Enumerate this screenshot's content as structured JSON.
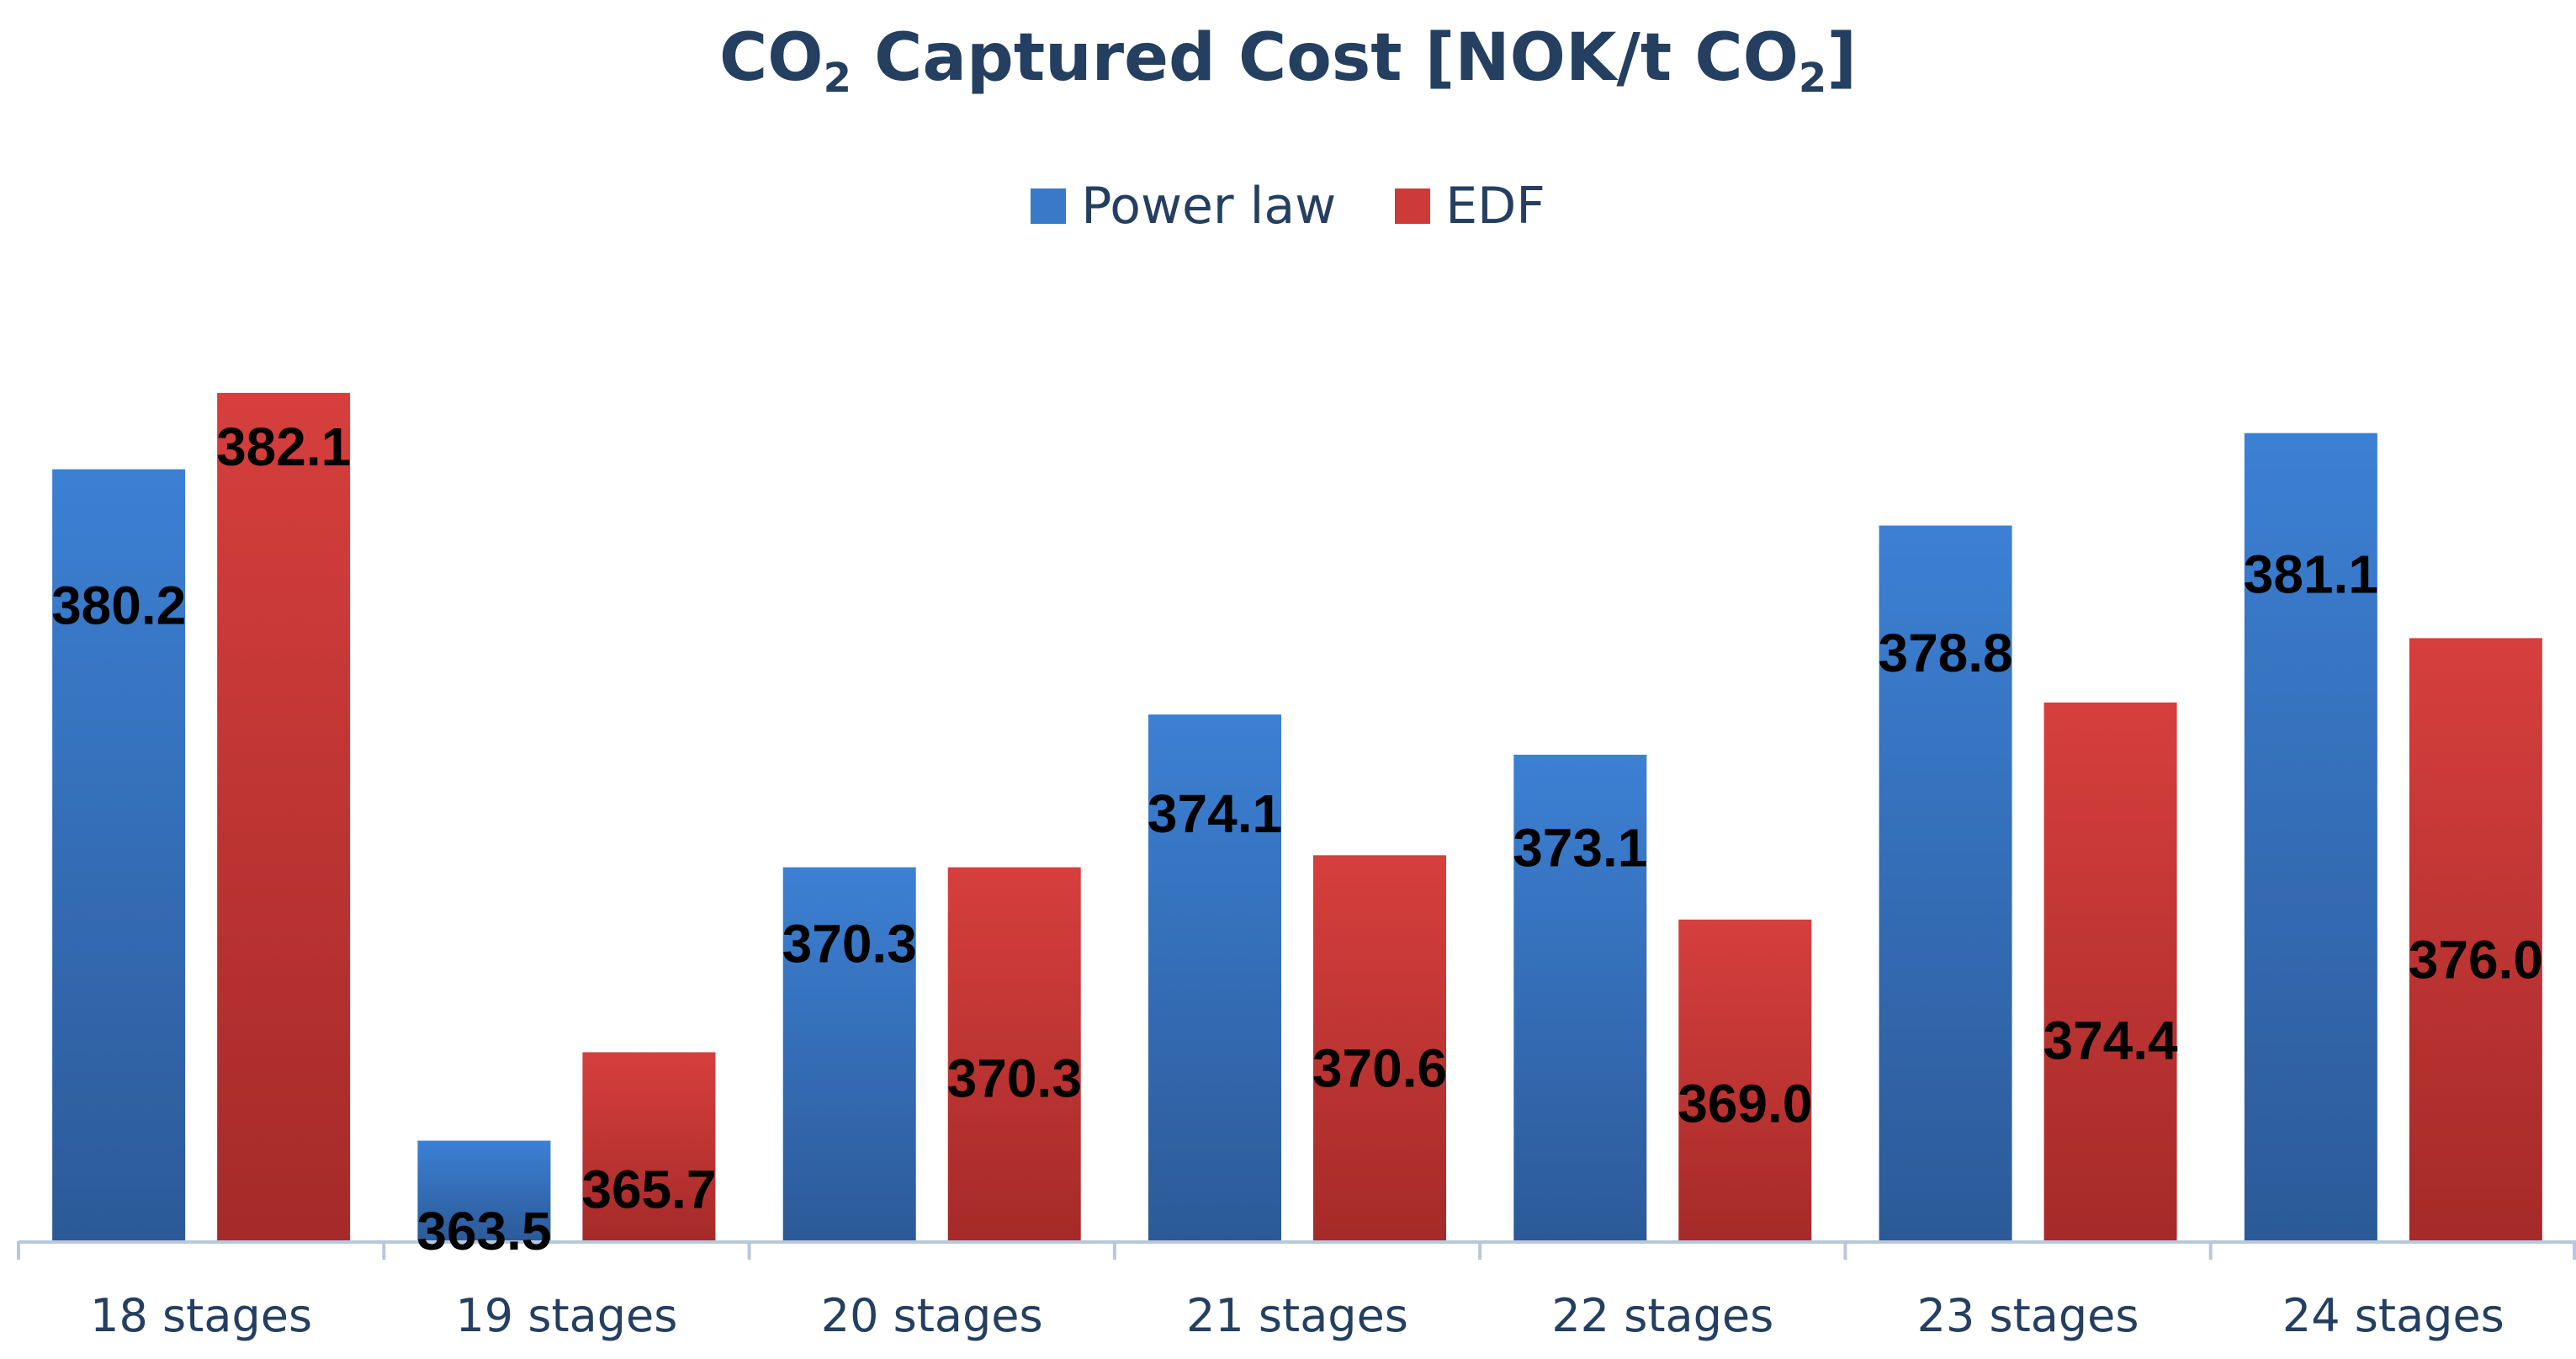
{
  "chart_data": {
    "type": "bar",
    "title_parts": {
      "a": "CO",
      "a_sub": "2",
      "b": " Captured Cost [NOK/t CO",
      "b_sub": "2",
      "c": "]"
    },
    "categories": [
      "18 stages",
      "19 stages",
      "20 stages",
      "21 stages",
      "22 stages",
      "23 stages",
      "24 stages"
    ],
    "series": [
      {
        "name": "Power law",
        "values": [
          380.2,
          363.5,
          370.3,
          374.1,
          373.1,
          378.8,
          381.1
        ],
        "labels": [
          "380.2",
          "363.5",
          "370.3",
          "374.1",
          "373.1",
          "378.8",
          "381.1"
        ]
      },
      {
        "name": "EDF",
        "values": [
          382.1,
          365.7,
          370.3,
          370.6,
          369.0,
          374.4,
          376.0
        ],
        "labels": [
          "382.1",
          "365.7",
          "370.3",
          "370.6",
          "369.0",
          "374.4",
          "376.0"
        ]
      }
    ],
    "ylim": [
      361.0,
      383.5
    ],
    "grid": false,
    "legend_position": "top-center",
    "colors": {
      "Power law": "#3a78c8",
      "EDF": "#cc3b3a",
      "axis": "#b8c8dc",
      "text": "#243f60"
    }
  }
}
